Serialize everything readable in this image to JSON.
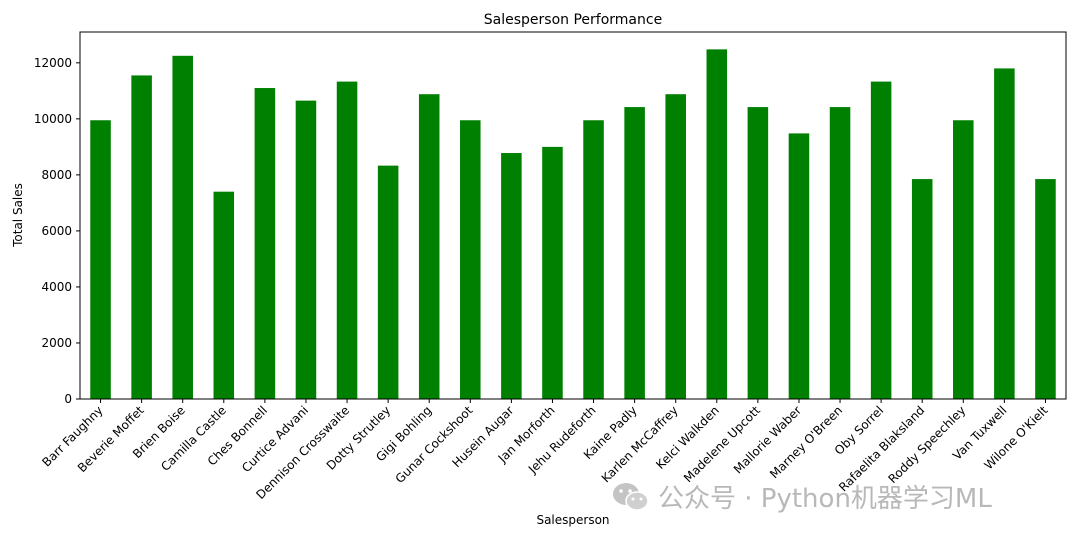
{
  "chart_data": {
    "type": "bar",
    "title": "Salesperson Performance",
    "xlabel": "Salesperson",
    "ylabel": "Total Sales",
    "ylim": [
      0,
      13100
    ],
    "yticks": [
      0,
      2000,
      4000,
      6000,
      8000,
      10000,
      12000
    ],
    "grid": false,
    "bar_color": "#008000",
    "categories": [
      "Barr Faughny",
      "Beverie Moffet",
      "Brien Boise",
      "Camilla Castle",
      "Ches Bonnell",
      "Curtice Advani",
      "Dennison Crosswaite",
      "Dotty Strutley",
      "Gigi Bohling",
      "Gunar Cockshoot",
      "Husein Augar",
      "Jan Morforth",
      "Jehu Rudeforth",
      "Kaine Padly",
      "Karlen McCaffrey",
      "Kelci Walkden",
      "Madelene Upcott",
      "Mallorie Waber",
      "Marney O'Breen",
      "Oby Sorrel",
      "Rafaelita Blaksland",
      "Roddy Speechley",
      "Van Tuxwell",
      "Wilone O'Kielt"
    ],
    "values": [
      9950,
      11550,
      12250,
      7400,
      11100,
      10650,
      11330,
      8330,
      10880,
      9950,
      8780,
      9000,
      9950,
      10420,
      10880,
      12480,
      10420,
      9480,
      10420,
      11330,
      7850,
      9950,
      11800,
      7850
    ]
  },
  "watermark": {
    "text": "公众号 · Python机器学习ML",
    "icon": "wechat-icon"
  }
}
